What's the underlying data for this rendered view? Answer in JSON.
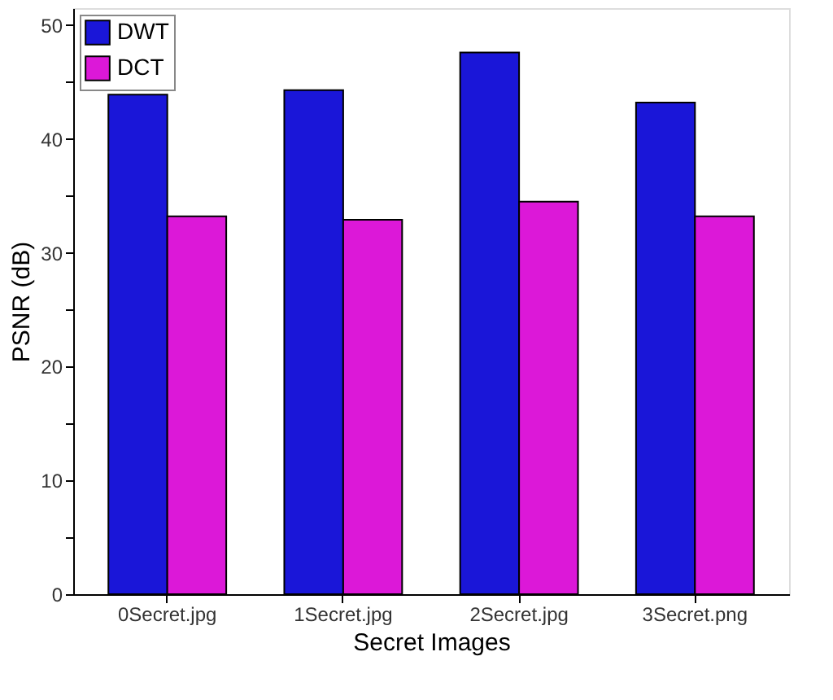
{
  "chart_data": {
    "type": "bar",
    "xlabel": "Secret Images",
    "ylabel": "PSNR (dB)",
    "categories": [
      "0Secret.jpg",
      "1Secret.jpg",
      "2Secret.jpg",
      "3Secret.png"
    ],
    "series": [
      {
        "name": "DWT",
        "color": "#1a16d8",
        "values": [
          43.9,
          44.3,
          47.6,
          43.2
        ]
      },
      {
        "name": "DCT",
        "color": "#dc18d8",
        "values": [
          33.2,
          32.9,
          34.5,
          33.2
        ]
      }
    ],
    "ylim": [
      0,
      51.5
    ],
    "yticks": [
      0,
      {
        "value": 5,
        "label": null
      },
      10,
      {
        "value": 15,
        "label": null
      },
      20,
      {
        "value": 25,
        "label": null
      },
      30,
      {
        "value": 35,
        "label": null
      },
      40,
      {
        "value": 45,
        "label": null
      },
      50
    ],
    "grid": false,
    "legend": "top left"
  }
}
